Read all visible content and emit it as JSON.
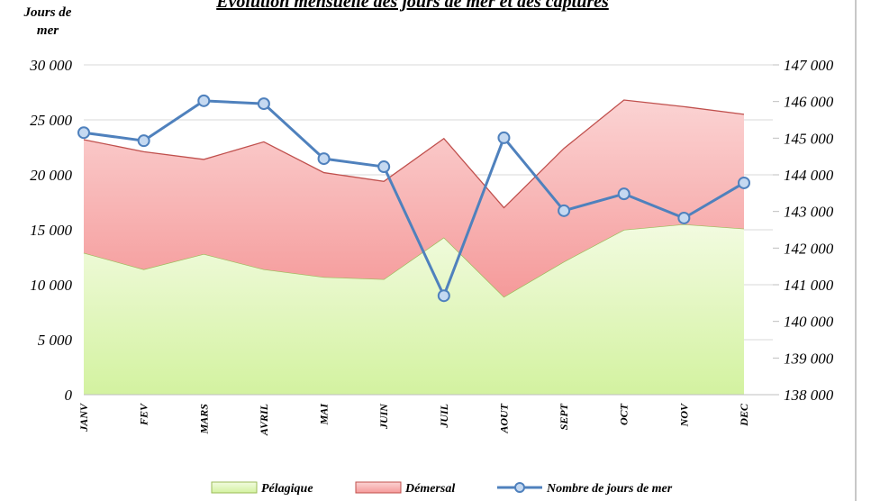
{
  "chart_data": {
    "type": "area",
    "title": "Evolution mensuelle des jours de mer et des captures",
    "y_axis_label": "Jours de mer",
    "categories": [
      "JANV",
      "FEV",
      "MARS",
      "AVRIL",
      "MAI",
      "JUIN",
      "JUIL",
      "AOUT",
      "SEPT",
      "OCT",
      "NOV",
      "DEC"
    ],
    "stacked": true,
    "series": [
      {
        "name": "Pélagique",
        "type": "area",
        "color": "#9bbb59",
        "values": [
          12900,
          11400,
          12800,
          11400,
          10700,
          10500,
          14300,
          8900,
          12100,
          15000,
          15500,
          15100
        ]
      },
      {
        "name": "Démersal",
        "type": "area",
        "color": "#c0504d",
        "values": [
          10300,
          10700,
          8600,
          11600,
          9500,
          8900,
          9000,
          8100,
          10300,
          11800,
          10700,
          10400
        ]
      },
      {
        "name": "Nombre de jours de mer",
        "type": "line",
        "axis": "y2",
        "color": "#4f81bd",
        "values": [
          145150,
          144930,
          146020,
          145940,
          144440,
          144220,
          140700,
          145010,
          143020,
          143480,
          142820,
          143780
        ]
      }
    ],
    "ylim": [
      0,
      30000
    ],
    "yticks": [
      0,
      {
        "value": 5000,
        "label": "5 000"
      },
      {
        "value": 10000,
        "label": "10 000"
      },
      {
        "value": 15000,
        "label": "15 000"
      },
      {
        "value": 20000,
        "label": "20 000"
      },
      {
        "value": 25000,
        "label": "25 000"
      },
      {
        "value": 30000,
        "label": "30 000"
      }
    ],
    "y2lim": [
      138000,
      147000
    ],
    "y2ticks": [
      {
        "value": 138000,
        "label": "138 000"
      },
      {
        "value": 139000,
        "label": "139 000"
      },
      {
        "value": 140000,
        "label": "140 000"
      },
      {
        "value": 141000,
        "label": "141 000"
      },
      {
        "value": 142000,
        "label": "142 000"
      },
      {
        "value": 143000,
        "label": "143 000"
      },
      {
        "value": 144000,
        "label": "144 000"
      },
      {
        "value": 145000,
        "label": "145 000"
      },
      {
        "value": 146000,
        "label": "146 000"
      },
      {
        "value": 147000,
        "label": "147 000"
      }
    ],
    "grid": true,
    "legend": "bottom"
  }
}
